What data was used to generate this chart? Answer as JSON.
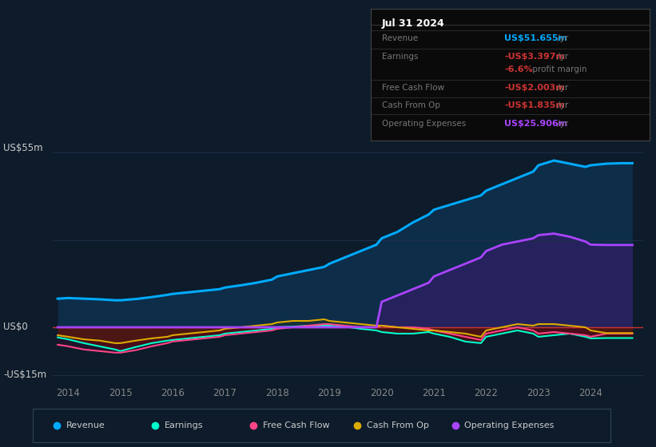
{
  "bg_color": "#0d1b2a",
  "plot_bg_color": "#0d1b2a",
  "ylabel_top": "US$55m",
  "ylabel_zero": "US$0",
  "ylabel_bottom": "-US$15m",
  "ylim": [
    -18,
    58
  ],
  "xlim": [
    2013.7,
    2025.0
  ],
  "xticks": [
    2014,
    2015,
    2016,
    2017,
    2018,
    2019,
    2020,
    2021,
    2022,
    2023,
    2024
  ],
  "box_date": "Jul 31 2024",
  "box_rows": [
    {
      "label": "Revenue",
      "value": "US$51.655m",
      "suffix": " /yr",
      "value_color": "#00aaff"
    },
    {
      "label": "Earnings",
      "value": "-US$3.397m",
      "suffix": " /yr",
      "value_color": "#cc3333"
    },
    {
      "label": "",
      "value": "-6.6%",
      "suffix": " profit margin",
      "value_color": "#cc3333"
    },
    {
      "label": "Free Cash Flow",
      "value": "-US$2.003m",
      "suffix": " /yr",
      "value_color": "#cc3333"
    },
    {
      "label": "Cash From Op",
      "value": "-US$1.835m",
      "suffix": " /yr",
      "value_color": "#cc3333"
    },
    {
      "label": "Operating Expenses",
      "value": "US$25.906m",
      "suffix": " /yr",
      "value_color": "#aa44ff"
    }
  ],
  "legend": [
    {
      "label": "Revenue",
      "color": "#00aaff"
    },
    {
      "label": "Earnings",
      "color": "#00ffcc"
    },
    {
      "label": "Free Cash Flow",
      "color": "#ff4488"
    },
    {
      "label": "Cash From Op",
      "color": "#ddaa00"
    },
    {
      "label": "Operating Expenses",
      "color": "#aa44ff"
    }
  ],
  "series": {
    "years": [
      2013.8,
      2014.0,
      2014.3,
      2014.6,
      2014.9,
      2015.0,
      2015.3,
      2015.6,
      2015.9,
      2016.0,
      2016.3,
      2016.6,
      2016.9,
      2017.0,
      2017.3,
      2017.6,
      2017.9,
      2018.0,
      2018.3,
      2018.6,
      2018.9,
      2019.0,
      2019.3,
      2019.6,
      2019.9,
      2020.0,
      2020.3,
      2020.6,
      2020.9,
      2021.0,
      2021.3,
      2021.6,
      2021.9,
      2022.0,
      2022.3,
      2022.6,
      2022.9,
      2023.0,
      2023.3,
      2023.6,
      2023.9,
      2024.0,
      2024.3,
      2024.6,
      2024.8
    ],
    "revenue": [
      9.0,
      9.2,
      9.0,
      8.8,
      8.5,
      8.5,
      8.9,
      9.5,
      10.2,
      10.5,
      11.0,
      11.5,
      12.0,
      12.5,
      13.2,
      14.0,
      15.0,
      16.0,
      17.0,
      18.0,
      19.0,
      20.0,
      22.0,
      24.0,
      26.0,
      28.0,
      30.0,
      33.0,
      35.5,
      37.0,
      38.5,
      40.0,
      41.5,
      43.0,
      45.0,
      47.0,
      49.0,
      51.0,
      52.5,
      51.5,
      50.5,
      51.0,
      51.5,
      51.655,
      51.655
    ],
    "earnings": [
      -3.2,
      -3.8,
      -5.0,
      -6.0,
      -7.0,
      -7.5,
      -6.2,
      -5.0,
      -4.2,
      -4.0,
      -3.5,
      -3.0,
      -2.5,
      -2.0,
      -1.5,
      -1.0,
      -0.5,
      0.0,
      0.2,
      0.5,
      0.5,
      0.5,
      0.2,
      -0.5,
      -1.0,
      -1.5,
      -2.0,
      -2.0,
      -1.5,
      -2.0,
      -3.0,
      -4.5,
      -5.0,
      -3.0,
      -2.0,
      -1.0,
      -2.0,
      -3.0,
      -2.5,
      -2.0,
      -3.0,
      -3.5,
      -3.397,
      -3.397,
      -3.397
    ],
    "fcf": [
      -5.5,
      -6.0,
      -7.0,
      -7.5,
      -8.0,
      -8.0,
      -7.2,
      -6.0,
      -5.0,
      -4.5,
      -4.0,
      -3.5,
      -3.0,
      -2.5,
      -2.0,
      -1.5,
      -1.0,
      -0.5,
      0.0,
      0.5,
      1.0,
      1.0,
      0.5,
      0.0,
      0.0,
      0.5,
      0.0,
      0.0,
      -0.5,
      -1.0,
      -2.0,
      -3.0,
      -4.0,
      -2.0,
      -1.0,
      0.0,
      -1.0,
      -2.0,
      -1.5,
      -2.0,
      -2.5,
      -3.0,
      -2.003,
      -2.003,
      -2.003
    ],
    "cashfromop": [
      -2.5,
      -3.0,
      -3.8,
      -4.2,
      -5.0,
      -5.0,
      -4.2,
      -3.5,
      -3.0,
      -2.5,
      -2.0,
      -1.5,
      -1.0,
      -0.5,
      0.0,
      0.5,
      1.0,
      1.5,
      2.0,
      2.0,
      2.5,
      2.0,
      1.5,
      1.0,
      0.5,
      0.5,
      0.0,
      -0.5,
      -1.0,
      -1.0,
      -1.5,
      -2.0,
      -3.0,
      -1.0,
      0.0,
      1.0,
      0.5,
      1.0,
      1.0,
      0.5,
      0.0,
      -1.0,
      -1.835,
      -1.835,
      -1.835
    ],
    "opex": [
      0.0,
      0.0,
      0.0,
      0.0,
      0.0,
      0.0,
      0.0,
      0.0,
      0.0,
      0.0,
      0.0,
      0.0,
      0.0,
      0.0,
      0.0,
      0.0,
      0.0,
      0.0,
      0.0,
      0.0,
      0.0,
      0.0,
      0.0,
      0.0,
      0.0,
      8.0,
      10.0,
      12.0,
      14.0,
      16.0,
      18.0,
      20.0,
      22.0,
      24.0,
      26.0,
      27.0,
      28.0,
      29.0,
      29.5,
      28.5,
      27.0,
      26.0,
      25.906,
      25.906,
      25.906
    ]
  }
}
